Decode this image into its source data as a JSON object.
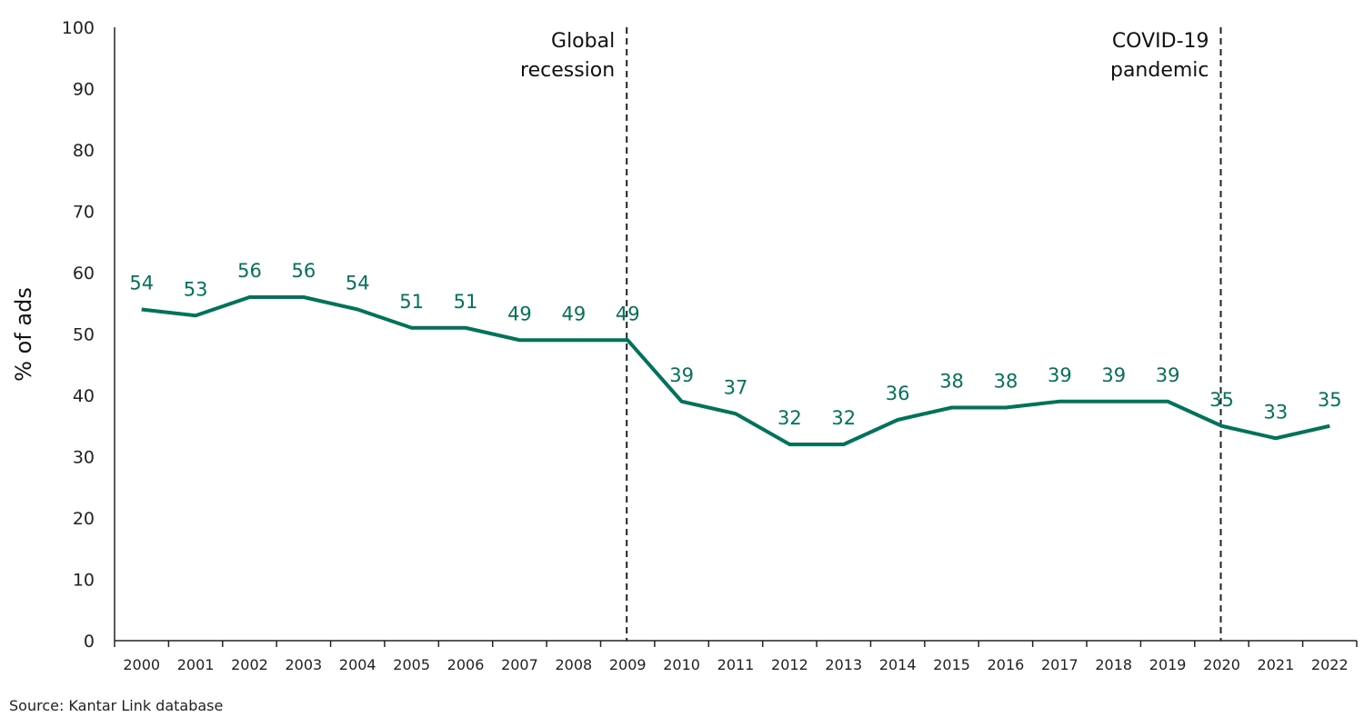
{
  "chart_data": {
    "type": "line",
    "title": "",
    "xlabel": "",
    "ylabel": "% of ads",
    "ylim": [
      0,
      100
    ],
    "yticks": [
      0,
      10,
      20,
      30,
      40,
      50,
      60,
      70,
      80,
      90,
      100
    ],
    "grid": false,
    "categories": [
      "2000",
      "2001",
      "2002",
      "2003",
      "2004",
      "2005",
      "2006",
      "2007",
      "2008",
      "2009",
      "2010",
      "2011",
      "2012",
      "2013",
      "2014",
      "2015",
      "2016",
      "2017",
      "2018",
      "2019",
      "2020",
      "2021",
      "2022"
    ],
    "values": [
      54,
      53,
      56,
      56,
      54,
      51,
      51,
      49,
      49,
      49,
      39,
      37,
      32,
      32,
      36,
      38,
      38,
      39,
      39,
      39,
      35,
      33,
      35
    ],
    "line_color": "#00735a",
    "annotations": [
      {
        "category": "2009",
        "lines": [
          "Global",
          "recession"
        ],
        "style": "dashed-vertical"
      },
      {
        "category": "2020",
        "lines": [
          "COVID-19",
          "pandemic"
        ],
        "style": "dashed-vertical"
      }
    ],
    "source": "Source: Kantar Link database"
  }
}
